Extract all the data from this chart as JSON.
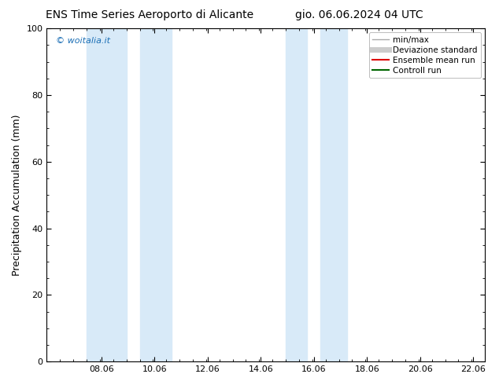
{
  "title_left": "ENS Time Series Aeroporto di Alicante",
  "title_right": "gio. 06.06.2024 04 UTC",
  "ylabel": "Precipitation Accumulation (mm)",
  "ylim": [
    0,
    100
  ],
  "yticks": [
    0,
    20,
    40,
    60,
    80,
    100
  ],
  "xmin": 6.0,
  "xmax": 22.5,
  "xticks": [
    8.06,
    10.06,
    12.06,
    14.06,
    16.06,
    18.06,
    20.06,
    22.06
  ],
  "xtick_labels": [
    "08.06",
    "10.06",
    "12.06",
    "14.06",
    "16.06",
    "18.06",
    "20.06",
    "22.06"
  ],
  "shaded_bands": [
    {
      "xstart": 7.5,
      "xend": 9.0
    },
    {
      "xstart": 9.5,
      "xend": 10.7
    },
    {
      "xstart": 15.0,
      "xend": 15.8
    },
    {
      "xstart": 16.3,
      "xend": 17.3
    }
  ],
  "shade_color": "#d8eaf8",
  "background_color": "#ffffff",
  "plot_bg_color": "#ffffff",
  "watermark_text": "© woitalia.it",
  "watermark_color": "#1a6eb5",
  "legend_entries": [
    {
      "label": "min/max",
      "color": "#aaaaaa",
      "lw": 1.0
    },
    {
      "label": "Deviazione standard",
      "color": "#cccccc",
      "lw": 5.0
    },
    {
      "label": "Ensemble mean run",
      "color": "#dd0000",
      "lw": 1.5
    },
    {
      "label": "Controll run",
      "color": "#006600",
      "lw": 1.5
    }
  ],
  "font_size_title": 10,
  "font_size_axis": 8,
  "font_size_legend": 7.5,
  "font_size_watermark": 8,
  "tick_color": "#000000",
  "minor_tick_interval": 0.5
}
